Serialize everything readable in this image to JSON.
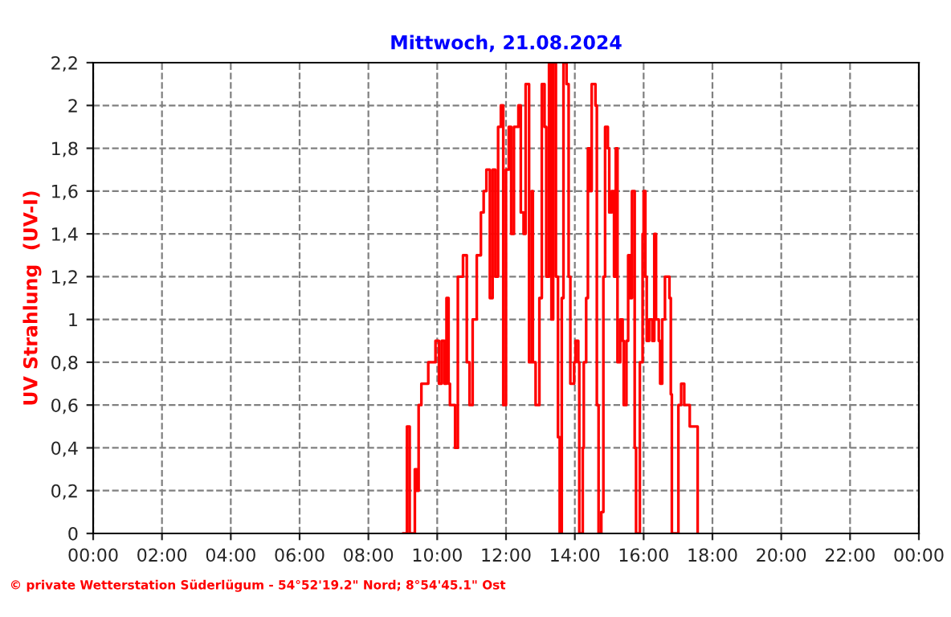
{
  "chart_data": {
    "type": "step",
    "title": "Mittwoch, 21.08.2024",
    "ylabel": "UV Strahlung  (UV-I)",
    "annotations": [
      "© private Wetterstation Süderlügum - 54°52'19.2\" Nord; 8°54'45.1\" Ost"
    ],
    "xlim": [
      0,
      24
    ],
    "xticks": [
      {
        "value": 0,
        "label": "00:00"
      },
      {
        "value": 2,
        "label": "02:00"
      },
      {
        "value": 4,
        "label": "04:00"
      },
      {
        "value": 6,
        "label": "06:00"
      },
      {
        "value": 8,
        "label": "08:00"
      },
      {
        "value": 10,
        "label": "10:00"
      },
      {
        "value": 12,
        "label": "12:00"
      },
      {
        "value": 14,
        "label": "14:00"
      },
      {
        "value": 16,
        "label": "16:00"
      },
      {
        "value": 18,
        "label": "18:00"
      },
      {
        "value": 20,
        "label": "20:00"
      },
      {
        "value": 22,
        "label": "22:00"
      },
      {
        "value": 24,
        "label": "00:00"
      }
    ],
    "ylim": [
      0,
      2.2
    ],
    "yticks": [
      0,
      {
        "value": 0.2,
        "label": "0,2"
      },
      {
        "value": 0.4,
        "label": "0,4"
      },
      {
        "value": 0.6,
        "label": "0,6"
      },
      {
        "value": 0.8,
        "label": "0,8"
      },
      1,
      {
        "value": 1.2,
        "label": "1,2"
      },
      {
        "value": 1.4,
        "label": "1,4"
      },
      {
        "value": 1.6,
        "label": "1,6"
      },
      {
        "value": 1.8,
        "label": "1,8"
      },
      2,
      {
        "value": 2.2,
        "label": "2,2"
      }
    ],
    "grid": true,
    "series": [
      {
        "color": "#ff0000",
        "x": [
          9.0,
          9.12,
          9.2,
          9.35,
          9.41,
          9.46,
          9.54,
          9.74,
          9.95,
          10.05,
          10.13,
          10.21,
          10.27,
          10.33,
          10.37,
          10.52,
          10.6,
          10.75,
          10.86,
          10.94,
          11.03,
          11.15,
          11.27,
          11.35,
          11.43,
          11.53,
          11.61,
          11.69,
          11.77,
          11.85,
          11.92,
          12.0,
          12.08,
          12.15,
          12.23,
          12.36,
          12.43,
          12.51,
          12.57,
          12.67,
          12.75,
          12.78,
          12.86,
          12.97,
          13.04,
          13.12,
          13.17,
          13.25,
          13.32,
          13.37,
          13.45,
          13.51,
          13.56,
          13.62,
          13.67,
          13.76,
          13.82,
          13.87,
          13.98,
          14.02,
          14.1,
          14.13,
          14.23,
          14.26,
          14.33,
          14.38,
          14.44,
          14.49,
          14.6,
          14.64,
          14.69,
          14.77,
          14.83,
          14.88,
          14.96,
          15.0,
          15.07,
          15.14,
          15.19,
          15.24,
          15.32,
          15.39,
          15.42,
          15.5,
          15.55,
          15.61,
          15.66,
          15.74,
          15.78,
          15.89,
          15.97,
          16.0,
          16.05,
          16.09,
          16.16,
          16.25,
          16.31,
          16.36,
          16.44,
          16.48,
          16.54,
          16.62,
          16.75,
          16.79,
          16.82,
          17.01,
          17.09,
          17.18,
          17.34,
          17.57
        ],
        "values": [
          0,
          0.5,
          0,
          0.3,
          0.2,
          0.6,
          0.7,
          0.8,
          0.9,
          0.7,
          0.9,
          0.7,
          1.1,
          0.7,
          0.6,
          0.4,
          1.2,
          1.3,
          0.8,
          0.6,
          1.0,
          1.3,
          1.5,
          1.6,
          1.7,
          1.1,
          1.7,
          1.2,
          1.9,
          2.0,
          0.6,
          1.7,
          1.9,
          1.4,
          1.9,
          2.0,
          1.5,
          1.4,
          2.1,
          0.8,
          1.6,
          0.8,
          0.6,
          1.1,
          2.1,
          1.9,
          1.2,
          2.2,
          1.0,
          2.2,
          1.2,
          0.45,
          0,
          1.1,
          2.2,
          2.1,
          1.2,
          0.7,
          0.8,
          0.9,
          0.8,
          0,
          0.4,
          0.8,
          1.1,
          1.8,
          1.6,
          2.1,
          2.0,
          0.6,
          0,
          0.1,
          1.2,
          1.9,
          1.8,
          1.5,
          1.6,
          1.2,
          1.8,
          0.8,
          1.0,
          0.9,
          0.6,
          0.9,
          1.3,
          1.1,
          1.6,
          0.4,
          0,
          0.8,
          1.4,
          1.6,
          1.2,
          0.9,
          1.0,
          0.9,
          1.4,
          1.0,
          0.9,
          0.7,
          1.0,
          1.2,
          1.1,
          0.65,
          0,
          0.6,
          0.7,
          0.6,
          0.5,
          0
        ]
      }
    ]
  }
}
